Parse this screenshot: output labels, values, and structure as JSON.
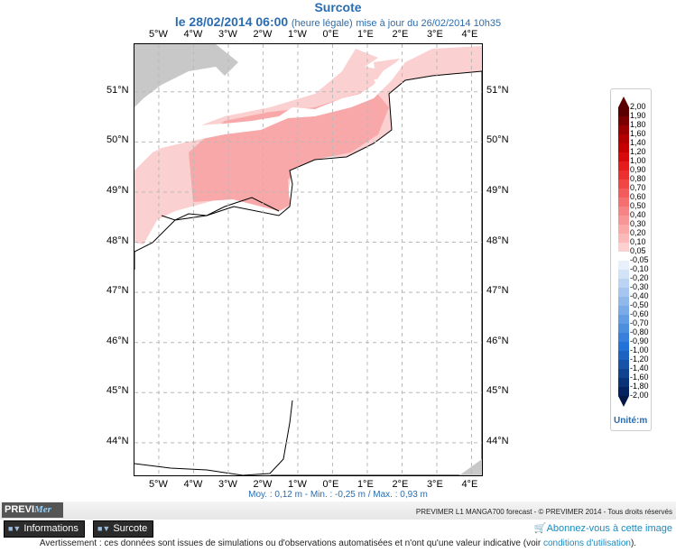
{
  "header": {
    "title": "Surcote",
    "date": "le 28/02/2014 06:00",
    "legal": "(heure légale)",
    "update": "mise à jour du 26/02/2014 10h35"
  },
  "map": {
    "lon_labels": [
      "5°W",
      "4°W",
      "3°W",
      "2°W",
      "1°W",
      "0°E",
      "1°E",
      "2°E",
      "3°E",
      "4°E"
    ],
    "lat_labels": [
      "51°N",
      "50°N",
      "49°N",
      "48°N",
      "47°N",
      "46°N",
      "45°N",
      "44°N"
    ],
    "lon_range": [
      -5.7,
      4.3
    ],
    "lat_range": [
      43.35,
      51.95
    ]
  },
  "stats": {
    "text": "Moy. : 0,12 m   -   Min. : -0,25 m / Max. : 0,93 m"
  },
  "colorbar": {
    "labels": [
      "2,00",
      "1,90",
      "1,80",
      "1,60",
      "1,40",
      "1,20",
      "1,00",
      "0,90",
      "0,80",
      "0,70",
      "0,60",
      "0,50",
      "0,40",
      "0,30",
      "0,20",
      "0,10",
      "0,05",
      "-0,05",
      "-0,10",
      "-0,20",
      "-0,30",
      "-0,40",
      "-0,50",
      "-0,60",
      "-0,70",
      "-0,80",
      "-0,90",
      "-1,00",
      "-1,20",
      "-1,40",
      "-1,60",
      "-1,80",
      "-2,00"
    ],
    "units": "Unité:m"
  },
  "footer": {
    "logo_a": "PREVI",
    "logo_b": "Mer",
    "credit": "PREVIMER L1 MANGA700 forecast - © PREVIMER 2014 - Tous droits réservés",
    "btn_info": "Informations",
    "btn_surcote": "Surcote",
    "subscribe": "Abonnez-vous à cette image",
    "warning": "Avertissement : ces données sont issues de simulations ou d'observations automatisées et n'ont qu'une valeur indicative (voir",
    "warning_link": "conditions d'utilisation",
    "warning_end": ")."
  }
}
